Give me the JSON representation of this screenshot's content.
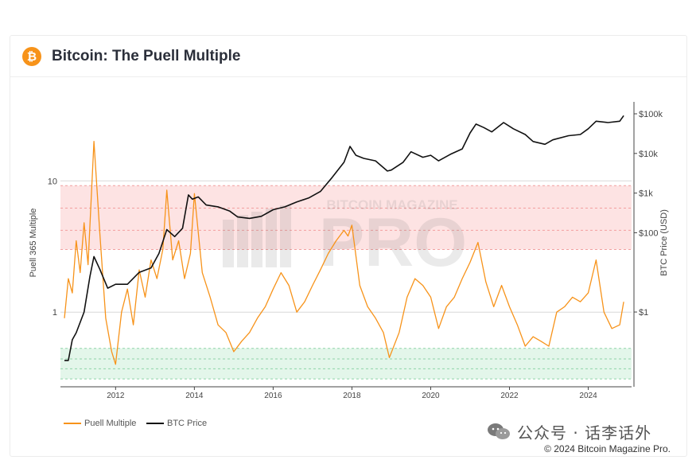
{
  "header": {
    "title": "Bitcoin: The Puell Multiple",
    "logo_glyph": "₿"
  },
  "watermark": {
    "brand_line": "BITCOIN MAGAZINE",
    "brand_word": "PRO"
  },
  "footer": {
    "source_label": "公众号 · 话李话外",
    "copyright": "© 2024 Bitcoin Magazine Pro."
  },
  "colors": {
    "puell": "#f7931a",
    "btc": "#111111",
    "red_band": "#fde3e3",
    "green_band": "#e3f6ea",
    "brand": "#f7931a"
  },
  "chart_data": {
    "type": "line",
    "title": "Bitcoin: The Puell Multiple",
    "xlabel": "",
    "x_ticks": [
      "2012",
      "2014",
      "2016",
      "2018",
      "2020",
      "2022",
      "2024"
    ],
    "xlim": [
      2010.6,
      2025.1
    ],
    "y_left": {
      "label": "Puell 365 Multiple",
      "scale": "log",
      "ticks": [
        "10",
        "1"
      ],
      "tick_values": [
        10,
        1
      ],
      "range": [
        0.27,
        40
      ]
    },
    "y_right": {
      "label": "BTC Price (USD)",
      "scale": "log",
      "ticks": [
        "$100k",
        "$10k",
        "$1k",
        "$100",
        "$1"
      ],
      "tick_values": [
        100000,
        10000,
        1000,
        100,
        1
      ],
      "range": [
        0.013,
        200000
      ]
    },
    "bands": [
      {
        "name": "high",
        "from": 3.0,
        "to": 9.2,
        "inner_lines": [
          4.2,
          6.2
        ]
      },
      {
        "name": "low",
        "from": 0.31,
        "to": 0.53,
        "inner_lines": [
          0.37,
          0.44
        ]
      }
    ],
    "grid": "horizontal at tick values",
    "legend_position": "bottom-left",
    "series": [
      {
        "name": "Puell Multiple",
        "axis": "left",
        "x": [
          2010.7,
          2010.8,
          2010.9,
          2011.0,
          2011.1,
          2011.2,
          2011.3,
          2011.45,
          2011.6,
          2011.75,
          2011.9,
          2012.0,
          2012.15,
          2012.3,
          2012.45,
          2012.6,
          2012.75,
          2012.9,
          2013.05,
          2013.2,
          2013.3,
          2013.45,
          2013.6,
          2013.75,
          2013.9,
          2014.0,
          2014.2,
          2014.4,
          2014.6,
          2014.8,
          2015.0,
          2015.2,
          2015.4,
          2015.6,
          2015.8,
          2016.0,
          2016.2,
          2016.4,
          2016.6,
          2016.8,
          2017.0,
          2017.2,
          2017.4,
          2017.6,
          2017.8,
          2017.9,
          2018.0,
          2018.2,
          2018.4,
          2018.6,
          2018.8,
          2018.95,
          2019.2,
          2019.4,
          2019.6,
          2019.8,
          2020.0,
          2020.2,
          2020.4,
          2020.6,
          2020.8,
          2021.0,
          2021.2,
          2021.4,
          2021.6,
          2021.8,
          2022.0,
          2022.2,
          2022.4,
          2022.6,
          2022.8,
          2023.0,
          2023.2,
          2023.4,
          2023.6,
          2023.8,
          2024.0,
          2024.2,
          2024.4,
          2024.6,
          2024.8,
          2024.9
        ],
        "y": [
          0.9,
          1.8,
          1.4,
          3.5,
          2.0,
          4.8,
          2.3,
          20.0,
          4.0,
          0.9,
          0.5,
          0.4,
          1.0,
          1.5,
          0.8,
          2.1,
          1.3,
          2.5,
          1.8,
          3.0,
          8.5,
          2.5,
          3.5,
          1.8,
          2.8,
          8.0,
          2.0,
          1.3,
          0.8,
          0.7,
          0.5,
          0.6,
          0.7,
          0.9,
          1.1,
          1.5,
          2.0,
          1.6,
          1.0,
          1.2,
          1.6,
          2.1,
          2.8,
          3.5,
          4.2,
          3.8,
          4.6,
          1.6,
          1.1,
          0.9,
          0.7,
          0.45,
          0.7,
          1.3,
          1.8,
          1.6,
          1.3,
          0.75,
          1.1,
          1.3,
          1.8,
          2.4,
          3.4,
          1.7,
          1.1,
          1.6,
          1.1,
          0.8,
          0.55,
          0.65,
          0.6,
          0.55,
          1.0,
          1.1,
          1.3,
          1.2,
          1.4,
          2.5,
          1.0,
          0.75,
          0.8,
          1.2
        ]
      },
      {
        "name": "BTC Price",
        "axis": "right",
        "x": [
          2010.7,
          2010.8,
          2010.9,
          2011.0,
          2011.2,
          2011.35,
          2011.45,
          2011.6,
          2011.8,
          2012.0,
          2012.3,
          2012.6,
          2012.9,
          2013.1,
          2013.3,
          2013.5,
          2013.7,
          2013.85,
          2013.95,
          2014.1,
          2014.3,
          2014.6,
          2014.9,
          2015.1,
          2015.4,
          2015.7,
          2016.0,
          2016.3,
          2016.6,
          2016.9,
          2017.2,
          2017.5,
          2017.8,
          2017.95,
          2018.1,
          2018.3,
          2018.6,
          2018.9,
          2019.0,
          2019.3,
          2019.5,
          2019.8,
          2020.0,
          2020.2,
          2020.5,
          2020.8,
          2021.0,
          2021.15,
          2021.35,
          2021.55,
          2021.85,
          2022.1,
          2022.4,
          2022.6,
          2022.9,
          2023.1,
          2023.5,
          2023.8,
          2024.0,
          2024.2,
          2024.5,
          2024.8,
          2024.9
        ],
        "y": [
          0.06,
          0.06,
          0.2,
          0.3,
          1,
          8,
          25,
          12,
          4,
          5,
          5,
          10,
          13,
          30,
          120,
          80,
          130,
          900,
          700,
          800,
          500,
          450,
          350,
          250,
          230,
          260,
          380,
          450,
          600,
          750,
          1100,
          2500,
          6000,
          15000,
          9000,
          7500,
          6500,
          3600,
          3800,
          6000,
          11000,
          8000,
          9000,
          6500,
          9500,
          13000,
          33000,
          55000,
          45000,
          35000,
          60000,
          42000,
          30000,
          20000,
          17000,
          22000,
          28000,
          30000,
          42000,
          65000,
          60000,
          65000,
          90000
        ]
      }
    ]
  }
}
